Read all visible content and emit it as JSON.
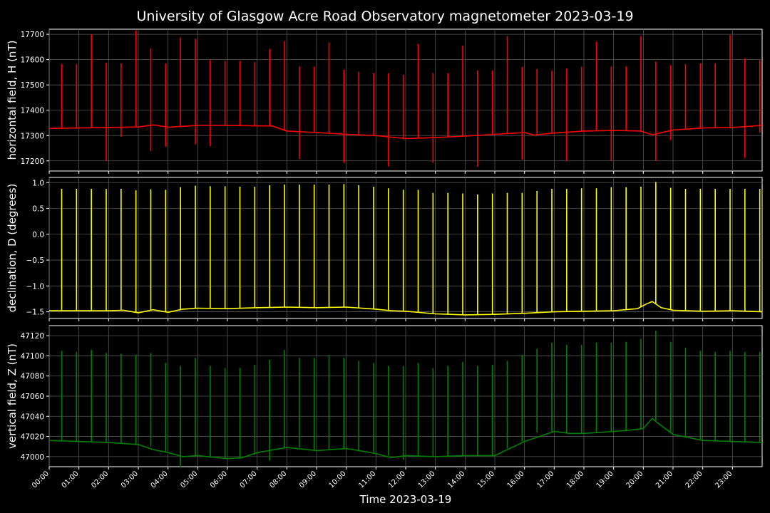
{
  "title": "University of Glasgow Acre Road Observatory magnetometer 2023-03-19",
  "colors": {
    "background": "#000000",
    "grid": "#555555",
    "H": "#ff0000",
    "D": "#ffff00",
    "Z": "#008000"
  },
  "chart_data": [
    {
      "type": "line",
      "name": "horizontal field",
      "ylabel": "horizontal field, H (nT)",
      "color": "#ff0000",
      "xlim": [
        0,
        24
      ],
      "ylim": [
        17160,
        17720
      ],
      "yticks": [
        17200,
        17300,
        17400,
        17500,
        17600,
        17700
      ],
      "grid": true,
      "baseline": {
        "x": [
          0,
          1,
          2,
          3,
          3.5,
          4,
          5,
          6,
          7,
          7.5,
          8,
          9,
          10,
          11,
          12,
          13,
          14,
          15,
          16,
          16.3,
          17,
          18,
          19,
          19.9,
          20.3,
          21,
          22,
          23,
          24
        ],
        "y": [
          17328,
          17330,
          17332,
          17334,
          17342,
          17333,
          17340,
          17340,
          17338,
          17338,
          17318,
          17312,
          17305,
          17300,
          17288,
          17292,
          17298,
          17305,
          17312,
          17302,
          17310,
          17318,
          17320,
          17318,
          17303,
          17322,
          17330,
          17332,
          17340
        ]
      },
      "spikes": {
        "x": [
          0.42,
          0.92,
          1.42,
          1.92,
          2.42,
          2.92,
          3.42,
          3.92,
          4.42,
          4.92,
          5.42,
          5.92,
          6.42,
          6.92,
          7.42,
          7.92,
          8.42,
          8.92,
          9.42,
          9.92,
          10.42,
          10.92,
          11.42,
          11.92,
          12.42,
          12.92,
          13.42,
          13.92,
          14.42,
          14.92,
          15.42,
          15.92,
          16.42,
          16.92,
          17.42,
          17.92,
          18.42,
          18.92,
          19.42,
          19.92,
          20.42,
          20.92,
          21.42,
          21.92,
          22.42,
          22.92,
          23.42,
          23.92
        ],
        "max": [
          17582,
          17582,
          17700,
          17588,
          17585,
          17715,
          17645,
          17585,
          17688,
          17682,
          17598,
          17595,
          17595,
          17590,
          17642,
          17673,
          17573,
          17572,
          17668,
          17560,
          17552,
          17547,
          17546,
          17540,
          17662,
          17547,
          17546,
          17655,
          17557,
          17557,
          17693,
          17571,
          17563,
          17556,
          17565,
          17572,
          17671,
          17573,
          17573,
          17693,
          17592,
          17578,
          17583,
          17585,
          17585,
          17697,
          17605,
          17598
        ],
        "min": [
          17328,
          17330,
          17330,
          17200,
          17295,
          17334,
          17238,
          17256,
          17333,
          17265,
          17258,
          17340,
          17338,
          17338,
          17338,
          17318,
          17208,
          17313,
          17311,
          17192,
          17300,
          17298,
          17178,
          17286,
          17288,
          17192,
          17292,
          17296,
          17177,
          17304,
          17310,
          17205,
          17302,
          17308,
          17200,
          17314,
          17318,
          17200,
          17318,
          17318,
          17200,
          17282,
          17328,
          17330,
          17330,
          17332,
          17212,
          17312
        ]
      }
    },
    {
      "type": "line",
      "name": "declination",
      "ylabel": "declination, D (degrees)",
      "color": "#ffff00",
      "xlim": [
        0,
        24
      ],
      "ylim": [
        -1.63,
        1.1
      ],
      "yticks": [
        -1.5,
        -1.0,
        -0.5,
        0.0,
        0.5,
        1.0
      ],
      "grid": true,
      "baseline": {
        "x": [
          0,
          2,
          2.5,
          3,
          3.5,
          4,
          4.5,
          5,
          6,
          7,
          8,
          9,
          10,
          11,
          11.5,
          12,
          13,
          14,
          15,
          16,
          17,
          18,
          19,
          19.8,
          20.1,
          20.3,
          20.6,
          21,
          22,
          23,
          24
        ],
        "y": [
          -1.48,
          -1.48,
          -1.47,
          -1.52,
          -1.46,
          -1.51,
          -1.45,
          -1.43,
          -1.44,
          -1.42,
          -1.41,
          -1.42,
          -1.41,
          -1.45,
          -1.48,
          -1.49,
          -1.54,
          -1.56,
          -1.55,
          -1.53,
          -1.5,
          -1.49,
          -1.48,
          -1.44,
          -1.35,
          -1.3,
          -1.42,
          -1.47,
          -1.49,
          -1.48,
          -1.5
        ]
      },
      "spikes": {
        "x": [
          0.42,
          0.92,
          1.42,
          1.92,
          2.42,
          2.92,
          3.42,
          3.92,
          4.42,
          4.92,
          5.42,
          5.92,
          6.42,
          6.92,
          7.42,
          7.92,
          8.42,
          8.92,
          9.42,
          9.92,
          10.42,
          10.92,
          11.42,
          11.92,
          12.42,
          12.92,
          13.42,
          13.92,
          14.42,
          14.92,
          15.42,
          15.92,
          16.42,
          16.92,
          17.42,
          17.92,
          18.42,
          18.92,
          19.42,
          19.92,
          20.42,
          20.92,
          21.42,
          21.92,
          22.42,
          22.92,
          23.42,
          23.92
        ],
        "max": [
          0.88,
          0.88,
          0.88,
          0.88,
          0.88,
          0.85,
          0.87,
          0.86,
          0.91,
          0.94,
          0.93,
          0.93,
          0.92,
          0.92,
          0.95,
          0.96,
          0.96,
          0.96,
          0.96,
          0.97,
          0.95,
          0.92,
          0.89,
          0.86,
          0.86,
          0.8,
          0.8,
          0.79,
          0.77,
          0.79,
          0.8,
          0.8,
          0.84,
          0.88,
          0.88,
          0.89,
          0.89,
          0.91,
          0.91,
          0.92,
          1.01,
          0.9,
          0.88,
          0.88,
          0.88,
          0.88,
          0.88,
          0.88
        ]
      }
    },
    {
      "type": "line",
      "name": "vertical field",
      "ylabel": "vertical field, Z (nT)",
      "color": "#008000",
      "xlim": [
        0,
        24
      ],
      "ylim": [
        46990,
        47130
      ],
      "yticks": [
        47000,
        47020,
        47040,
        47060,
        47080,
        47100,
        47120
      ],
      "grid": true,
      "baseline": {
        "x": [
          0,
          1,
          2,
          3,
          3.5,
          4,
          4.5,
          5,
          6,
          6.5,
          7,
          8,
          9,
          10,
          11,
          11.5,
          12,
          13,
          14,
          15,
          15.5,
          16,
          17,
          17.5,
          18,
          19,
          19.8,
          20,
          20.3,
          20.5,
          21,
          22,
          23,
          24
        ],
        "y": [
          47016,
          47015,
          47014,
          47012,
          47007,
          47004,
          47000,
          47001,
          46998,
          46999,
          47004,
          47009,
          47006,
          47008,
          47003,
          46999,
          47001,
          47000,
          47001,
          47001,
          47008,
          47015,
          47025,
          47023,
          47023,
          47025,
          47027,
          47028,
          47038,
          47033,
          47022,
          47016,
          47015,
          47014
        ]
      },
      "spikes": {
        "x": [
          0.42,
          0.92,
          1.42,
          1.92,
          2.42,
          2.92,
          3.42,
          3.92,
          4.42,
          4.92,
          5.42,
          5.92,
          6.42,
          6.92,
          7.42,
          7.92,
          8.42,
          8.92,
          9.42,
          9.92,
          10.42,
          10.92,
          11.42,
          11.92,
          12.42,
          12.92,
          13.42,
          13.92,
          14.42,
          14.92,
          15.42,
          15.92,
          16.42,
          16.92,
          17.42,
          17.92,
          18.42,
          18.92,
          19.42,
          19.92,
          20.42,
          20.92,
          21.42,
          21.92,
          22.42,
          22.92,
          23.42,
          23.92
        ],
        "max": [
          47105,
          47104,
          47106,
          47103,
          47102,
          47101,
          47103,
          47093,
          47090,
          47098,
          47090,
          47088,
          47088,
          47091,
          47096,
          47106,
          47098,
          47098,
          47101,
          47098,
          47095,
          47093,
          47090,
          47090,
          47093,
          47088,
          47090,
          47094,
          47090,
          47091,
          47095,
          47101,
          47107,
          47113,
          47111,
          47111,
          47113,
          47113,
          47114,
          47117,
          47125,
          47114,
          47108,
          47105,
          47104,
          47105,
          47104,
          47104
        ],
        "min": [
          47016,
          47015,
          47015,
          47014,
          47013,
          47012,
          47010,
          47004,
          46989,
          47001,
          46999,
          46998,
          46998,
          47002,
          46996,
          47009,
          47009,
          47007,
          47007,
          47008,
          47006,
          47004,
          47001,
          46997,
          47001,
          47000,
          47000,
          47001,
          47001,
          47001,
          47008,
          47015,
          47024,
          47025,
          47023,
          47023,
          47024,
          47025,
          47025,
          47027,
          47036,
          47024,
          47020,
          47017,
          47016,
          47015,
          47015,
          47014
        ]
      }
    }
  ],
  "xaxis": {
    "label": "Time 2023-03-19",
    "ticks": [
      "00:00",
      "01:00",
      "02:00",
      "03:00",
      "04:00",
      "05:00",
      "06:00",
      "07:00",
      "08:00",
      "09:00",
      "10:00",
      "11:00",
      "12:00",
      "13:00",
      "14:00",
      "15:00",
      "16:00",
      "17:00",
      "18:00",
      "19:00",
      "20:00",
      "21:00",
      "22:00",
      "23:00"
    ]
  }
}
